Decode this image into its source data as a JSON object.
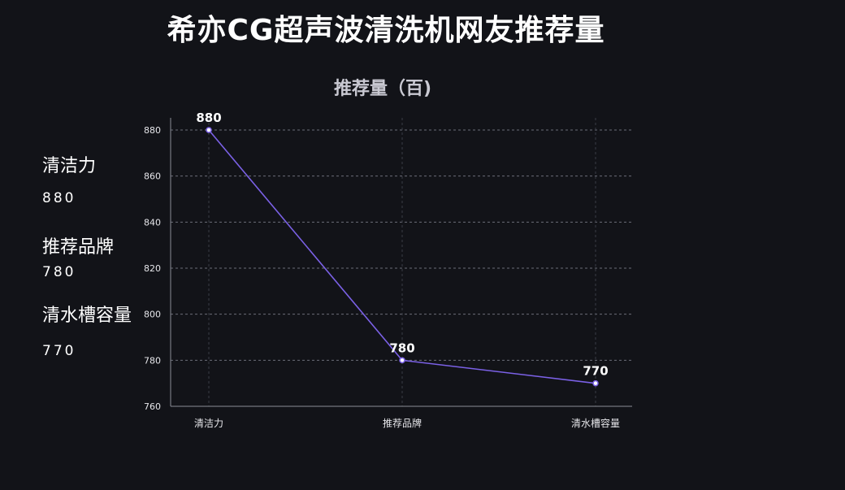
{
  "title": "希亦CG超声波清洗机网友推荐量",
  "sidebar": {
    "items": [
      {
        "label": "清洁力",
        "value": "880"
      },
      {
        "label": "推荐品牌",
        "value": "780"
      },
      {
        "label": "清水槽容量",
        "value": "770"
      }
    ]
  },
  "chart_data": {
    "type": "line",
    "title": "推荐量（百)",
    "categories": [
      "清洁力",
      "推荐品牌",
      "清水槽容量"
    ],
    "series": [
      {
        "values": [
          880,
          780,
          770
        ],
        "color": "#7b61e6"
      }
    ],
    "ylim": [
      760,
      880
    ],
    "yticks": [
      760,
      780,
      800,
      820,
      840,
      860,
      880
    ],
    "data_labels": [
      "880",
      "780",
      "770"
    ],
    "grid": true,
    "legend": "none"
  }
}
